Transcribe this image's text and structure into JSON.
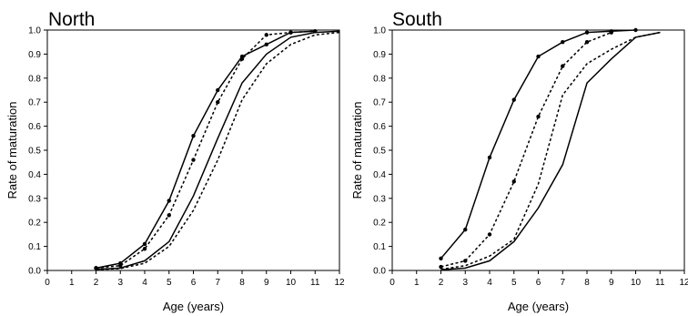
{
  "chart_data": [
    {
      "type": "line",
      "title": "North",
      "xlabel": "Age (years)",
      "ylabel": "Rate of maturation",
      "xlim": [
        0,
        12
      ],
      "ylim": [
        0,
        1.0
      ],
      "x_ticks": [
        "0",
        "1",
        "2",
        "3",
        "4",
        "5",
        "6",
        "7",
        "8",
        "9",
        "10",
        "11",
        "12"
      ],
      "y_ticks": [
        "0.0",
        "0.1",
        "0.2",
        "0.3",
        "0.4",
        "0.5",
        "0.6",
        "0.7",
        "0.8",
        "0.9",
        "1.0"
      ],
      "grid": false,
      "series": [
        {
          "style": "solid",
          "markers": true,
          "x": [
            2,
            3,
            4,
            5,
            6,
            7,
            8,
            9,
            10,
            11
          ],
          "y": [
            0.01,
            0.03,
            0.11,
            0.29,
            0.56,
            0.75,
            0.89,
            0.94,
            0.99,
            0.995
          ]
        },
        {
          "style": "dotted",
          "markers": true,
          "x": [
            2,
            3,
            4,
            5,
            6,
            7,
            8,
            9,
            10,
            11
          ],
          "y": [
            0.01,
            0.02,
            0.09,
            0.23,
            0.46,
            0.7,
            0.88,
            0.98,
            0.99,
            0.995
          ]
        },
        {
          "style": "solid",
          "markers": false,
          "x": [
            2,
            3,
            4,
            5,
            6,
            7,
            8,
            9,
            10,
            11,
            12
          ],
          "y": [
            0.005,
            0.01,
            0.04,
            0.12,
            0.31,
            0.55,
            0.78,
            0.9,
            0.97,
            0.99,
            0.995
          ]
        },
        {
          "style": "dotted",
          "markers": false,
          "x": [
            2,
            3,
            4,
            5,
            6,
            7,
            8,
            9,
            10,
            11,
            12
          ],
          "y": [
            0.003,
            0.008,
            0.03,
            0.1,
            0.25,
            0.46,
            0.71,
            0.86,
            0.94,
            0.98,
            0.99
          ]
        }
      ]
    },
    {
      "type": "line",
      "title": "South",
      "xlabel": "Age (years)",
      "ylabel": "Rate of maturation",
      "xlim": [
        0,
        12
      ],
      "ylim": [
        0,
        1.0
      ],
      "x_ticks": [
        "0",
        "1",
        "2",
        "3",
        "4",
        "5",
        "6",
        "7",
        "8",
        "9",
        "10",
        "11",
        "12"
      ],
      "y_ticks": [
        "0.0",
        "0.1",
        "0.2",
        "0.3",
        "0.4",
        "0.5",
        "0.6",
        "0.7",
        "0.8",
        "0.9",
        "1.0"
      ],
      "grid": false,
      "series": [
        {
          "style": "solid",
          "markers": true,
          "x": [
            2,
            3,
            4,
            5,
            6,
            7,
            8,
            9,
            10
          ],
          "y": [
            0.05,
            0.17,
            0.47,
            0.71,
            0.89,
            0.95,
            0.99,
            0.995,
            1.0
          ]
        },
        {
          "style": "dotted",
          "markers": true,
          "x": [
            2,
            3,
            4,
            5,
            6,
            7,
            8,
            9
          ],
          "y": [
            0.015,
            0.04,
            0.15,
            0.37,
            0.64,
            0.85,
            0.95,
            0.99
          ]
        },
        {
          "style": "dotted",
          "markers": false,
          "x": [
            2,
            3,
            4,
            5,
            6,
            7,
            8,
            9,
            10,
            11
          ],
          "y": [
            0.005,
            0.02,
            0.06,
            0.13,
            0.36,
            0.73,
            0.86,
            0.92,
            0.97,
            0.99
          ]
        },
        {
          "style": "solid",
          "markers": false,
          "x": [
            2,
            3,
            4,
            5,
            6,
            7,
            8,
            9,
            10,
            11
          ],
          "y": [
            0.003,
            0.01,
            0.04,
            0.12,
            0.26,
            0.44,
            0.78,
            0.88,
            0.97,
            0.99
          ]
        }
      ]
    }
  ]
}
